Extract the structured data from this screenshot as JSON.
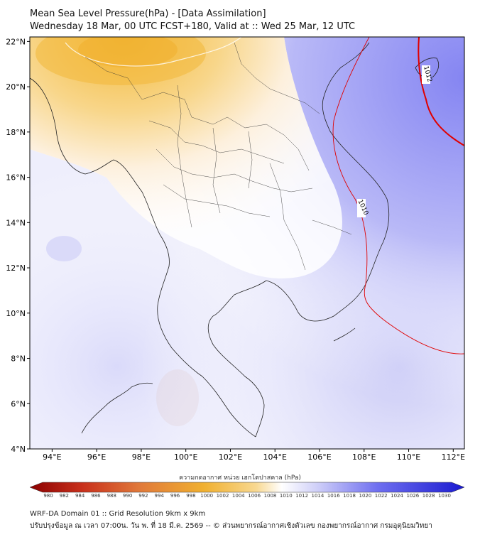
{
  "header": {
    "title_line1": "Mean Sea Level Pressure(hPa) - [Data Assimilation]",
    "title_line2": "Wednesday 18 Mar, 00 UTC FCST+180, Valid at :: Wed 25 Mar, 12 UTC"
  },
  "map": {
    "lon_ticks": [
      "94°E",
      "96°E",
      "98°E",
      "100°E",
      "102°E",
      "104°E",
      "106°E",
      "108°E",
      "110°E",
      "112°E"
    ],
    "lon_values": [
      94,
      96,
      98,
      100,
      102,
      104,
      106,
      108,
      110,
      112
    ],
    "lat_ticks": [
      "22°N",
      "20°N",
      "18°N",
      "16°N",
      "14°N",
      "12°N",
      "10°N",
      "8°N",
      "6°N",
      "4°N"
    ],
    "lat_values": [
      22,
      20,
      18,
      16,
      14,
      12,
      10,
      8,
      6,
      4
    ],
    "lon_range": [
      93,
      112.5
    ],
    "lat_range": [
      4,
      22.2
    ],
    "contour_labels": [
      "1012",
      "1010"
    ],
    "colors": {
      "low": "#f3b838",
      "neutral": "#ffffff",
      "high": "#6f6ff0",
      "contour": "#e00000"
    }
  },
  "colorbar": {
    "title": "ความกดอากาศ หน่วย เฮกโตปาสคาล (hPa)",
    "labels": [
      "980",
      "982",
      "984",
      "986",
      "988",
      "990",
      "992",
      "994",
      "996",
      "998",
      "1000",
      "1002",
      "1004",
      "1006",
      "1008",
      "1010",
      "1012",
      "1014",
      "1016",
      "1018",
      "1020",
      "1022",
      "1024",
      "1026",
      "1028",
      "1030"
    ]
  },
  "footer": {
    "line1": "WRF-DA Domain 01 :: Grid Resolution 9km x 9km",
    "line2": "ปรับปรุงข้อมูล ณ เวลา 07:00น. วัน พ. ที่ 18 มี.ค. 2569 -- © ส่วนพยากรณ์อากาศเชิงตัวเลข กองพยากรณ์อากาศ กรมอุตุนิยมวิทยา"
  }
}
